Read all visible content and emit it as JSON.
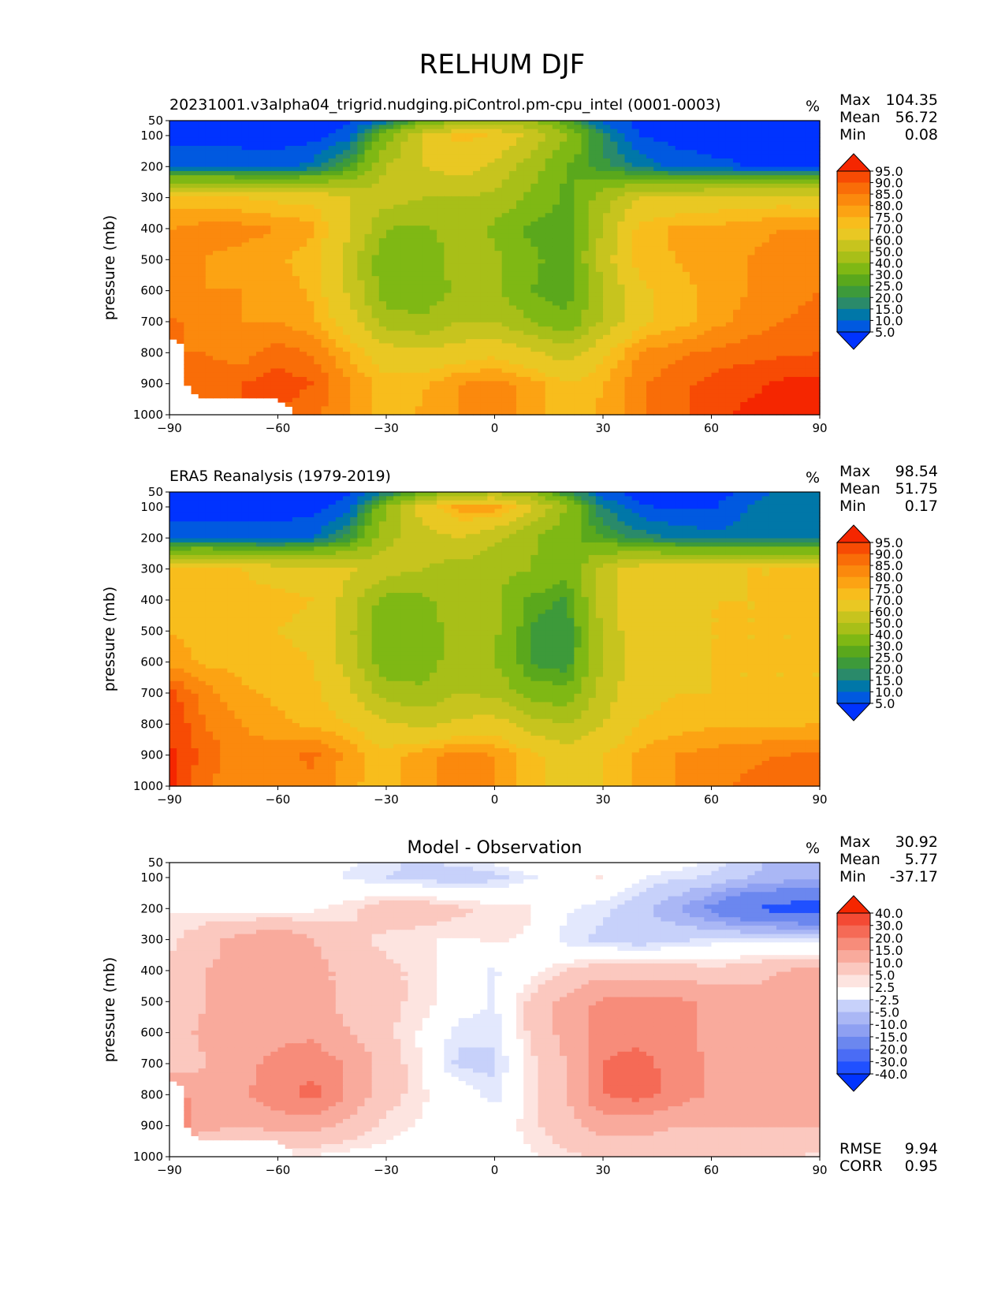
{
  "chart_data": {
    "suptitle": "RELHUM DJF",
    "panels": [
      {
        "type": "heatmap",
        "title": "20231001.v3alpha04_trigrid.nudging.piControl.pm-cpu_intel (0001-0003)",
        "title_align": "left",
        "units": "%",
        "stats": [
          {
            "label": "Max",
            "value": "104.35"
          },
          {
            "label": "Mean",
            "value": "56.72"
          },
          {
            "label": "Min",
            "value": "0.08"
          }
        ],
        "ylabel": "pressure (mb)",
        "xticks": [
          "−90",
          "−60",
          "−30",
          "0",
          "30",
          "60",
          "90"
        ],
        "yticks": [
          "50",
          "100",
          "200",
          "300",
          "400",
          "500",
          "600",
          "700",
          "800",
          "900",
          "1000"
        ],
        "xlim": [
          -90,
          90
        ],
        "ylim": [
          1000,
          50
        ],
        "colorbar": [
          "95.0",
          "90.0",
          "85.0",
          "80.0",
          "75.0",
          "70.0",
          "60.0",
          "50.0",
          "40.0",
          "30.0",
          "25.0",
          "20.0",
          "15.0",
          "10.0",
          "5.0"
        ],
        "lat": [
          -90,
          -80,
          -70,
          -60,
          -50,
          -40,
          -30,
          -20,
          -10,
          0,
          10,
          20,
          30,
          40,
          50,
          60,
          70,
          80,
          90
        ],
        "lev": [
          50,
          100,
          200,
          300,
          400,
          500,
          600,
          700,
          800,
          900,
          1000
        ],
        "z": [
          [
            2,
            2,
            2,
            2,
            2,
            4,
            12,
            28,
            40,
            45,
            42,
            25,
            8,
            3,
            2,
            2,
            2,
            2,
            2
          ],
          [
            3,
            3,
            3,
            3,
            3,
            8,
            35,
            62,
            72,
            70,
            58,
            40,
            18,
            5,
            3,
            3,
            3,
            3,
            3
          ],
          [
            10,
            10,
            8,
            7,
            12,
            25,
            50,
            60,
            65,
            58,
            45,
            30,
            22,
            14,
            8,
            6,
            5,
            4,
            4
          ],
          [
            72,
            72,
            70,
            68,
            68,
            60,
            55,
            50,
            50,
            48,
            38,
            28,
            45,
            60,
            62,
            65,
            66,
            66,
            65
          ],
          [
            80,
            82,
            82,
            80,
            76,
            62,
            40,
            38,
            45,
            38,
            28,
            25,
            52,
            72,
            76,
            76,
            78,
            80,
            80
          ],
          [
            80,
            80,
            78,
            76,
            72,
            55,
            32,
            32,
            45,
            42,
            32,
            26,
            55,
            73,
            75,
            78,
            80,
            83,
            84
          ],
          [
            80,
            80,
            80,
            78,
            74,
            58,
            34,
            33,
            42,
            42,
            30,
            25,
            50,
            68,
            73,
            76,
            80,
            84,
            85
          ],
          [
            86,
            83,
            80,
            80,
            76,
            65,
            45,
            42,
            50,
            50,
            40,
            32,
            52,
            68,
            72,
            78,
            82,
            85,
            86
          ],
          [
            null,
            85,
            82,
            88,
            84,
            74,
            65,
            62,
            65,
            68,
            62,
            55,
            68,
            80,
            84,
            86,
            88,
            89,
            90
          ],
          [
            null,
            88,
            90,
            93,
            90,
            80,
            72,
            74,
            80,
            82,
            78,
            70,
            75,
            84,
            88,
            92,
            94,
            96,
            97
          ],
          [
            null,
            null,
            null,
            null,
            86,
            80,
            72,
            76,
            80,
            82,
            78,
            72,
            76,
            84,
            88,
            94,
            96,
            96,
            97
          ]
        ],
        "scale": "rh"
      },
      {
        "type": "heatmap",
        "title": "ERA5 Reanalysis (1979-2019)",
        "title_align": "left",
        "units": "%",
        "stats": [
          {
            "label": "Max",
            "value": "98.54"
          },
          {
            "label": "Mean",
            "value": "51.75"
          },
          {
            "label": "Min",
            "value": "0.17"
          }
        ],
        "ylabel": "pressure (mb)",
        "xticks": [
          "−90",
          "−60",
          "−30",
          "0",
          "30",
          "60",
          "90"
        ],
        "yticks": [
          "50",
          "100",
          "200",
          "300",
          "400",
          "500",
          "600",
          "700",
          "800",
          "900",
          "1000"
        ],
        "xlim": [
          -90,
          90
        ],
        "ylim": [
          1000,
          50
        ],
        "colorbar": [
          "95.0",
          "90.0",
          "85.0",
          "80.0",
          "75.0",
          "70.0",
          "60.0",
          "50.0",
          "40.0",
          "30.0",
          "25.0",
          "20.0",
          "15.0",
          "10.0",
          "5.0"
        ],
        "lat": [
          -90,
          -80,
          -70,
          -60,
          -50,
          -40,
          -30,
          -20,
          -10,
          0,
          10,
          20,
          30,
          40,
          50,
          60,
          70,
          80,
          90
        ],
        "lev": [
          50,
          100,
          200,
          300,
          400,
          500,
          600,
          700,
          800,
          900,
          1000
        ],
        "z": [
          [
            2,
            2,
            2,
            2,
            2,
            4,
            14,
            30,
            42,
            46,
            40,
            20,
            6,
            3,
            2,
            2,
            6,
            12,
            14
          ],
          [
            3,
            3,
            3,
            3,
            3,
            8,
            38,
            65,
            78,
            80,
            62,
            40,
            15,
            6,
            4,
            4,
            10,
            14,
            15
          ],
          [
            8,
            8,
            7,
            7,
            10,
            22,
            48,
            55,
            60,
            52,
            42,
            32,
            25,
            18,
            14,
            12,
            12,
            12,
            12
          ],
          [
            70,
            72,
            70,
            66,
            66,
            62,
            55,
            50,
            46,
            44,
            40,
            32,
            55,
            66,
            66,
            68,
            70,
            70,
            70
          ],
          [
            75,
            74,
            73,
            72,
            70,
            55,
            35,
            38,
            45,
            42,
            28,
            24,
            55,
            68,
            68,
            70,
            70,
            70,
            72
          ],
          [
            75,
            73,
            72,
            70,
            68,
            52,
            30,
            34,
            45,
            42,
            24,
            20,
            52,
            68,
            68,
            70,
            70,
            70,
            70
          ],
          [
            78,
            74,
            73,
            72,
            70,
            55,
            33,
            35,
            45,
            40,
            24,
            22,
            50,
            66,
            68,
            70,
            70,
            70,
            70
          ],
          [
            92,
            82,
            76,
            74,
            72,
            62,
            45,
            42,
            50,
            48,
            35,
            32,
            55,
            68,
            70,
            70,
            70,
            70,
            70
          ],
          [
            95,
            85,
            80,
            76,
            74,
            70,
            62,
            58,
            62,
            65,
            55,
            50,
            60,
            70,
            72,
            74,
            74,
            74,
            75
          ],
          [
            96,
            88,
            82,
            84,
            86,
            78,
            72,
            78,
            82,
            80,
            72,
            66,
            70,
            76,
            80,
            82,
            84,
            85,
            86
          ],
          [
            97,
            86,
            80,
            82,
            84,
            76,
            72,
            78,
            82,
            80,
            72,
            66,
            70,
            76,
            80,
            84,
            86,
            88,
            90
          ]
        ],
        "scale": "rh"
      },
      {
        "type": "heatmap",
        "title": "Model - Observation",
        "title_align": "center",
        "units": "%",
        "stats": [
          {
            "label": "Max",
            "value": "30.92"
          },
          {
            "label": "Mean",
            "value": "5.77"
          },
          {
            "label": "Min",
            "value": "-37.17"
          }
        ],
        "bottom_stats": [
          {
            "label": "RMSE",
            "value": "9.94"
          },
          {
            "label": "CORR",
            "value": "0.95"
          }
        ],
        "ylabel": "pressure (mb)",
        "xticks": [
          "−90",
          "−60",
          "−30",
          "0",
          "30",
          "60",
          "90"
        ],
        "yticks": [
          "50",
          "100",
          "200",
          "300",
          "400",
          "500",
          "600",
          "700",
          "800",
          "900",
          "1000"
        ],
        "xlim": [
          -90,
          90
        ],
        "ylim": [
          1000,
          50
        ],
        "colorbar": [
          "40.0",
          "30.0",
          "20.0",
          "15.0",
          "10.0",
          "5.0",
          "2.5",
          "-2.5",
          "-5.0",
          "-10.0",
          "-15.0",
          "-20.0",
          "-30.0",
          "-40.0"
        ],
        "lat": [
          -90,
          -80,
          -70,
          -60,
          -50,
          -40,
          -30,
          -20,
          -10,
          0,
          10,
          20,
          30,
          40,
          50,
          60,
          70,
          80,
          90
        ],
        "lev": [
          50,
          100,
          200,
          300,
          400,
          500,
          600,
          700,
          800,
          900,
          1000
        ],
        "z": [
          [
            0,
            0,
            0,
            0,
            0,
            -2,
            -4,
            -6,
            -4,
            -2,
            1,
            3,
            1,
            0,
            -1,
            -3,
            -8,
            -12,
            -14
          ],
          [
            0,
            0,
            0,
            0,
            -1,
            -3,
            -5,
            -6,
            -8,
            -6,
            -3,
            0,
            3,
            -2,
            -4,
            -6,
            -10,
            -12,
            -14
          ],
          [
            2,
            2,
            1,
            0,
            2,
            4,
            8,
            8,
            6,
            4,
            3,
            -2,
            -4,
            -8,
            -14,
            -22,
            -30,
            -34,
            -36
          ],
          [
            4,
            8,
            12,
            15,
            10,
            6,
            4,
            3,
            2,
            3,
            2,
            -4,
            -6,
            -8,
            -6,
            -4,
            -4,
            -4,
            -5
          ],
          [
            6,
            10,
            12,
            13,
            12,
            8,
            6,
            4,
            0,
            -3,
            1,
            5,
            8,
            8,
            8,
            6,
            8,
            10,
            12
          ],
          [
            6,
            10,
            12,
            12,
            12,
            8,
            6,
            4,
            0,
            -3,
            6,
            12,
            16,
            16,
            16,
            14,
            12,
            12,
            12
          ],
          [
            8,
            11,
            13,
            14,
            14,
            10,
            6,
            2,
            -4,
            -4,
            6,
            12,
            18,
            18,
            16,
            14,
            12,
            12,
            12
          ],
          [
            6,
            10,
            14,
            16,
            18,
            14,
            8,
            2,
            -6,
            -6,
            4,
            10,
            20,
            22,
            18,
            14,
            12,
            10,
            12
          ],
          [
            18,
            12,
            14,
            18,
            22,
            14,
            7,
            3,
            0,
            -4,
            4,
            10,
            20,
            22,
            18,
            14,
            12,
            12,
            14
          ],
          [
            18,
            12,
            10,
            12,
            12,
            8,
            4,
            2,
            0,
            0,
            4,
            8,
            12,
            12,
            10,
            10,
            10,
            10,
            10
          ],
          [
            2,
            2,
            2,
            2,
            2,
            1,
            1,
            1,
            0,
            0,
            2,
            4,
            6,
            6,
            6,
            8,
            6,
            6,
            4
          ]
        ],
        "mask_missing_from_panel": 0,
        "scale": "diff"
      }
    ],
    "colors": {
      "rh": [
        "#0033ff",
        "#0059e0",
        "#0077a8",
        "#2a8a6a",
        "#3d9a3a",
        "#5aa81c",
        "#7fb814",
        "#a8bf18",
        "#c7c41e",
        "#e9c823",
        "#f8bd1c",
        "#fca313",
        "#fb890d",
        "#f96d08",
        "#f74b04",
        "#f52600"
      ],
      "diff": [
        "#0033ff",
        "#2050ff",
        "#4a6cf5",
        "#6b87ef",
        "#8ea0f2",
        "#aab7f5",
        "#c7d1fa",
        "#e3e8fd",
        "#ffffff",
        "#fde4e0",
        "#fbc8bf",
        "#f9aa9c",
        "#f78c7a",
        "#f56a56",
        "#f44a34",
        "#f52600"
      ]
    }
  }
}
